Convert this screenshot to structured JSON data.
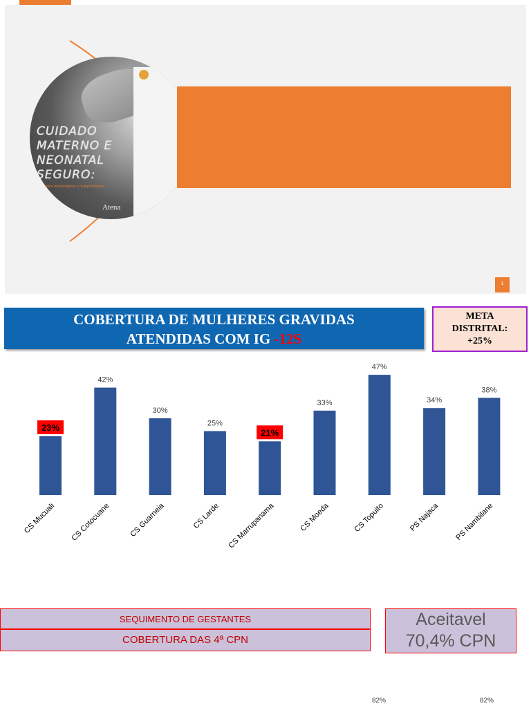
{
  "slide": {
    "book_title": "CUIDADO\nMATERNO E\nNEONATAL\nSEGURO:",
    "book_subtitle": "a prática interdisciplinar e multiprofissional",
    "publisher": "Atena",
    "slide_number": "1",
    "colors": {
      "accent": "#ed7d31",
      "background": "#f2f2f2"
    }
  },
  "header": {
    "title_line1": "COBERTURA DE MULHERES GRAVIDAS",
    "title_line2_prefix": "ATENDIDAS COM IG ",
    "title_line2_highlight": "-12S",
    "meta_line1": "META",
    "meta_line2": "DISTRITAL:",
    "meta_line3": "+25%"
  },
  "chart_data": {
    "type": "bar",
    "categories": [
      "CS Mucuali",
      "CS Cotocuane",
      "CS Guarneia",
      "CS Larde",
      "CS Marrupanama",
      "CS Moeda",
      "CS Topuito",
      "PS Najaca",
      "PS Nambilane"
    ],
    "values": [
      23,
      42,
      30,
      25,
      21,
      33,
      47,
      34,
      38
    ],
    "data_labels": [
      "23%",
      "42%",
      "30%",
      "25%",
      "21%",
      "33%",
      "47%",
      "34%",
      "38%"
    ],
    "highlighted_categories": [
      "CS Mucuali",
      "CS Marrupanama"
    ],
    "ylim": [
      0,
      50
    ],
    "grid": false,
    "colors": {
      "bar": "#2f5597",
      "highlight": "#ff0000"
    }
  },
  "footer": {
    "row1": "SEQUIMENTO DE GESTANTES",
    "row2": "COBERTURA DAS 4ª CPN",
    "acceptable_line1": "Aceitavel",
    "acceptable_line2": "70,4% CPN",
    "partial_pct_1": "82%",
    "partial_pct_2": "82%"
  }
}
